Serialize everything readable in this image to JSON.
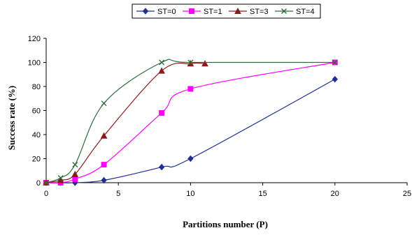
{
  "chart_data": {
    "type": "line",
    "title": "",
    "xlabel": "Partitions number (P)",
    "ylabel": "Success rate (%)",
    "xlim": [
      0,
      25
    ],
    "ylim": [
      0,
      120
    ],
    "xticks": [
      "0",
      "5",
      "10",
      "15",
      "20",
      "25"
    ],
    "yticks": [
      "0",
      "20",
      "40",
      "60",
      "80",
      "100",
      "120"
    ],
    "grid": false,
    "legend_position": "top-center",
    "series": [
      {
        "name": "ST=0",
        "color": "#1f2f8f",
        "marker": "diamond",
        "x": [
          0,
          1,
          2,
          4,
          8,
          10,
          20
        ],
        "y": [
          0,
          0,
          0,
          2,
          13,
          20,
          86
        ]
      },
      {
        "name": "ST=1",
        "color": "#ff00ff",
        "marker": "square",
        "x": [
          0,
          1,
          2,
          4,
          8,
          10,
          20
        ],
        "y": [
          0,
          0,
          3,
          15,
          58,
          78,
          100
        ]
      },
      {
        "name": "ST=3",
        "color": "#8b1a1a",
        "marker": "triangle",
        "x": [
          0,
          1,
          2,
          4,
          8,
          10,
          11
        ],
        "y": [
          0,
          2,
          7,
          39,
          93,
          99,
          99
        ]
      },
      {
        "name": "ST=4",
        "color": "#2e6b3a",
        "marker": "x",
        "x": [
          0,
          1,
          2,
          4,
          8,
          10,
          20
        ],
        "y": [
          0,
          4,
          15,
          66,
          100,
          100,
          100
        ]
      }
    ]
  }
}
